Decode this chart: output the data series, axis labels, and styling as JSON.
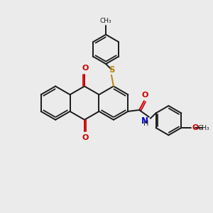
{
  "background_color": "#ebebeb",
  "bond_color": "#1a1a1a",
  "sulfur_color": "#b8860b",
  "oxygen_color": "#cc0000",
  "nitrogen_color": "#0000cc",
  "figsize": [
    3.0,
    3.0
  ],
  "dpi": 100,
  "ring_r": 24,
  "lw": 1.4,
  "inner_off": 3.2,
  "centers": {
    "A": [
      78,
      155
    ],
    "B": [
      119.5,
      155
    ],
    "C": [
      161,
      155
    ]
  }
}
